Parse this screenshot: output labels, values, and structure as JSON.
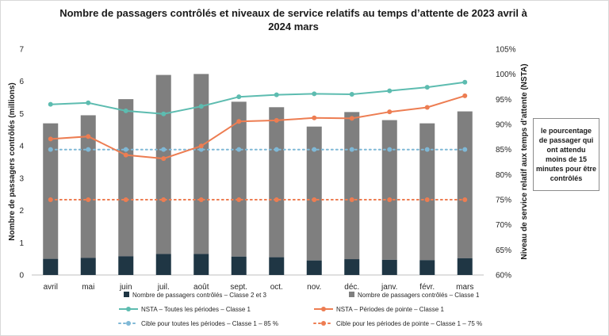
{
  "title": "Nombre de passagers contrôlés et niveaux de service relatifs au temps d’attente de 2023 avril à 2024 mars",
  "note": "le pourcentage de passager qui ont attendu moins de 15 minutes pour être contrôlés",
  "colors": {
    "bar_class1": "#7f7f7f",
    "bar_class23": "#1f3644",
    "line_all": "#5dbcb0",
    "line_peak": "#ed7d52",
    "target_all": "#7fb8d6",
    "target_peak": "#ed7d52"
  },
  "chart_data": {
    "type": "bar",
    "title": "Nombre de passagers contrôlés et niveaux de service relatifs au temps d’attente de 2023 avril à 2024 mars",
    "categories": [
      "avril",
      "mai",
      "juin",
      "juil.",
      "août",
      "sept.",
      "oct.",
      "nov.",
      "déc.",
      "janv.",
      "févr.",
      "mars"
    ],
    "ylabel": "Nombre de passagers contrôlés (millions)",
    "y2label": "Niveau de service relatif aux temps d’attente (NSTA)",
    "ylim": [
      0,
      7
    ],
    "yticks": [
      "0",
      "1",
      "2",
      "3",
      "4",
      "5",
      "6",
      "7"
    ],
    "y2lim": [
      60,
      105
    ],
    "y2ticks": [
      "60%",
      "65%",
      "70%",
      "75%",
      "80%",
      "85%",
      "90%",
      "95%",
      "100%",
      "105%"
    ],
    "series": [
      {
        "name": "Nombre de passagers contrôlés – Classe 2 et 3",
        "kind": "bar",
        "axis": "left",
        "values": [
          0.5,
          0.53,
          0.58,
          0.65,
          0.65,
          0.57,
          0.55,
          0.45,
          0.49,
          0.47,
          0.46,
          0.52
        ]
      },
      {
        "name": "Nombre de passagers contrôlés – Classe 1",
        "kind": "bar",
        "axis": "left",
        "values": [
          4.2,
          4.42,
          4.87,
          5.55,
          5.58,
          4.8,
          4.65,
          4.15,
          4.56,
          4.33,
          4.24,
          4.55
        ]
      },
      {
        "name": "NSTA – Toutes les périodes – Classe 1",
        "kind": "line",
        "axis": "right",
        "values": [
          94.0,
          94.3,
          92.7,
          92.1,
          93.6,
          95.5,
          95.9,
          96.1,
          96.0,
          96.7,
          97.4,
          98.4
        ]
      },
      {
        "name": "NSTA – Périodes de pointe – Classe 1",
        "kind": "line",
        "axis": "right",
        "values": [
          87.1,
          87.6,
          83.9,
          83.2,
          85.7,
          90.6,
          90.8,
          91.3,
          91.2,
          92.5,
          93.4,
          95.7
        ]
      },
      {
        "name": "Cible pour toutes les périodes – Classe 1 – 85 %",
        "kind": "target",
        "axis": "right",
        "values": [
          85,
          85,
          85,
          85,
          85,
          85,
          85,
          85,
          85,
          85,
          85,
          85
        ]
      },
      {
        "name": "Cible pour les périodes de pointe – Classe 1 – 75 %",
        "kind": "target",
        "axis": "right",
        "values": [
          75,
          75,
          75,
          75,
          75,
          75,
          75,
          75,
          75,
          75,
          75,
          75
        ]
      }
    ]
  }
}
